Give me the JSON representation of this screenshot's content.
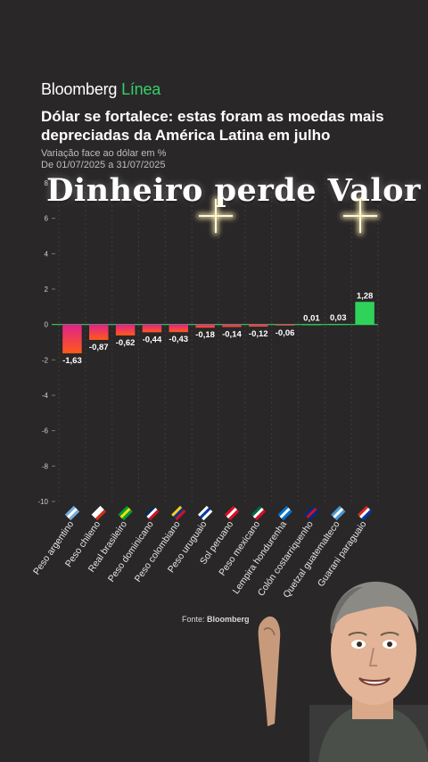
{
  "brand": {
    "name": "Bloomberg",
    "suffix": "Línea"
  },
  "headline": "Dólar se fortalece: estas foram as moedas mais depreciadas da América Latina em julho",
  "subtitle_line1": "Variação face ao dólar em %",
  "subtitle_line2": "De 01/07/2025 a 31/07/2025",
  "overlay_text": "Dinheiro perde Valor",
  "source": {
    "label": "Fonte:",
    "name": "Bloomberg"
  },
  "colors": {
    "background": "#2a2728",
    "negative_top": "#e0218a",
    "negative_bottom": "#ff5a1a",
    "positive": "#2fd35a",
    "zero_line": "#33d06a",
    "grid": "#3f3c3d"
  },
  "chart_data": {
    "type": "bar",
    "title": "",
    "xlabel": "",
    "ylabel": "",
    "ylim": [
      -10,
      8
    ],
    "yticks": [
      -10,
      -8,
      -6,
      -4,
      -2,
      0,
      2,
      4,
      6,
      8
    ],
    "grid": true,
    "categories": [
      "Peso argentino",
      "Peso chileno",
      "Real brasileiro",
      "Peso dominicano",
      "Peso colombiano",
      "Peso uruguaio",
      "Sol peruano",
      "Peso mexicano",
      "Lempira hondurenha",
      "Colón costarriquenho",
      "Quetzal guatemalteco",
      "Guarani paraguaio"
    ],
    "values": [
      -1.63,
      -0.87,
      -0.62,
      -0.44,
      -0.43,
      -0.18,
      -0.14,
      -0.12,
      -0.06,
      0.01,
      0.03,
      1.28
    ],
    "value_labels": [
      "-1,63",
      "-0,87",
      "-0,62",
      "-0,44",
      "-0,43",
      "-0,18",
      "-0,14",
      "-0,12",
      "-0,06",
      "0,01",
      "0,03",
      "1,28"
    ],
    "flags": [
      "argentina-flag",
      "chile-flag",
      "brazil-flag",
      "dominican-republic-flag",
      "colombia-flag",
      "uruguay-flag",
      "peru-flag",
      "mexico-flag",
      "honduras-flag",
      "costa-rica-flag",
      "guatemala-flag",
      "paraguay-flag"
    ]
  }
}
